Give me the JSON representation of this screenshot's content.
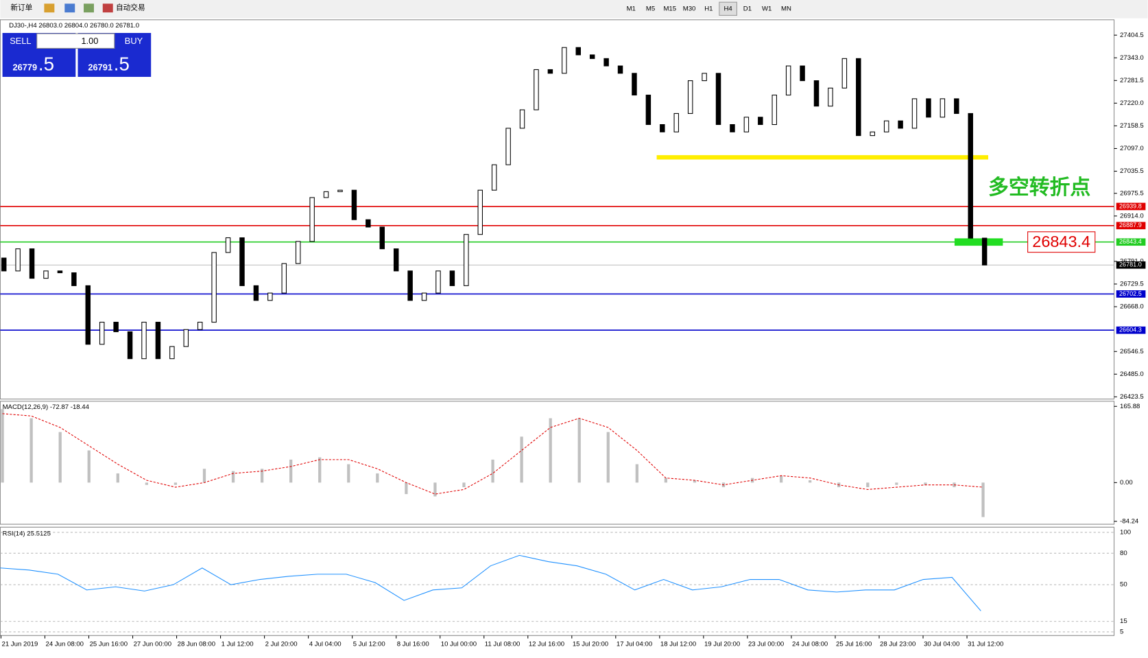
{
  "toolbar": {
    "new_order": "新订单",
    "auto_trading": "自动交易",
    "timeframes": [
      "M1",
      "M5",
      "M15",
      "M30",
      "H1",
      "H4",
      "D1",
      "W1",
      "MN"
    ]
  },
  "trade_panel": {
    "sell": "SELL",
    "buy": "BUY",
    "lot": "1.00",
    "sell_price": "26779",
    "sell_frac": ".5",
    "buy_price": "26791",
    "buy_frac": ".5"
  },
  "chart": {
    "header": "DJ30-,H4 26803.0 26804.0 26780.0 26781.0",
    "ylim": [
      26423.5,
      27404.5
    ],
    "yticks": [
      27404.5,
      {
        "value": 27343.0,
        "label": "27343.0"
      },
      27281.5,
      {
        "value": 27220.0,
        "label": "27220.0"
      },
      27158.5,
      {
        "value": 27097.0,
        "label": "27097.0"
      },
      27035.5,
      26975.5,
      {
        "value": 26914.0,
        "label": "26914.0"
      },
      {
        "value": 26791.0,
        "label": "26791.0"
      },
      26729.5,
      {
        "value": 26668.0,
        "label": "26668.0"
      },
      26546.5,
      {
        "value": 26485.0,
        "label": "26485.0"
      },
      26423.5
    ],
    "levels": [
      {
        "value": 26939.8,
        "color": "#e00000"
      },
      {
        "value": 26887.9,
        "color": "#e00000"
      },
      {
        "value": 26843.4,
        "color": "#22cc22"
      },
      {
        "value": 26702.5,
        "color": "#0000cc"
      },
      {
        "value": 26604.3,
        "color": "#0000cc"
      }
    ],
    "current": {
      "value": 26781.0,
      "label": "26781.0"
    },
    "support": 27073,
    "annotation": "多空转折点",
    "annotation_price": 26843.4,
    "first_open": 26800,
    "closes": [
      26765,
      26825,
      26745,
      26765,
      26760,
      26725,
      26566,
      26626,
      26600,
      26527,
      26626,
      26527,
      26560,
      26606,
      26626,
      26815,
      26855,
      26725,
      26685,
      26705,
      26785,
      26845,
      26964,
      26980,
      26984,
      26904,
      26884,
      26825,
      26765,
      26685,
      26705,
      26765,
      26725,
      26864,
      26984,
      27053,
      27152,
      27202,
      27311,
      27301,
      27371,
      27351,
      27341,
      27321,
      27301,
      27242,
      27162,
      27142,
      27192,
      27281,
      27301,
      27162,
      27142,
      27182,
      27162,
      27242,
      27321,
      27281,
      27212,
      27261,
      27341,
      27132,
      27142,
      27172,
      27152,
      27232,
      27182,
      27232,
      27192,
      26854,
      26781
    ]
  },
  "macd": {
    "label": "MACD(12,26,9) -72.87 -18.44",
    "ylim": [
      -84.24,
      165.88
    ],
    "yticks": [
      165.88,
      {
        "value": 0,
        "label": "0.00"
      },
      -84.24
    ],
    "hist": [
      160,
      140,
      110,
      70,
      20,
      -5,
      -5,
      30,
      25,
      30,
      50,
      55,
      40,
      20,
      -25,
      -30,
      -10,
      50,
      100,
      140,
      140,
      110,
      40,
      10,
      5,
      -10,
      10,
      15,
      5,
      -10,
      -10,
      -5,
      -5,
      -10,
      -75
    ],
    "signal": [
      150,
      145,
      120,
      80,
      40,
      5,
      -10,
      0,
      20,
      25,
      35,
      50,
      50,
      30,
      0,
      -25,
      -15,
      20,
      70,
      120,
      140,
      120,
      70,
      10,
      5,
      -5,
      5,
      15,
      10,
      -5,
      -15,
      -10,
      -5,
      -5,
      -10
    ]
  },
  "rsi": {
    "label": "RSI(14) 25.5125",
    "ylim": [
      5,
      100
    ],
    "yticks": [
      100,
      80,
      50,
      15,
      5
    ],
    "values": [
      66,
      64,
      60,
      45,
      48,
      44,
      50,
      66,
      50,
      55,
      58,
      60,
      60,
      52,
      35,
      45,
      47,
      68,
      78,
      72,
      68,
      60,
      45,
      55,
      45,
      48,
      55,
      55,
      45,
      43,
      45,
      45,
      55,
      57,
      25
    ]
  },
  "time_labels": [
    "21 Jun 2019",
    "24 Jun 08:00",
    "25 Jun 16:00",
    "27 Jun 00:00",
    "28 Jun 08:00",
    "1 Jul 12:00",
    "2 Jul 20:00",
    "4 Jul 04:00",
    "5 Jul 12:00",
    "8 Jul 16:00",
    "10 Jul 00:00",
    "11 Jul 08:00",
    "12 Jul 16:00",
    "15 Jul 20:00",
    "17 Jul 04:00",
    "18 Jul 12:00",
    "19 Jul 20:00",
    "23 Jul 00:00",
    "24 Jul 08:00",
    "25 Jul 16:00",
    "28 Jul 23:00",
    "30 Jul 04:00",
    "31 Jul 12:00"
  ]
}
